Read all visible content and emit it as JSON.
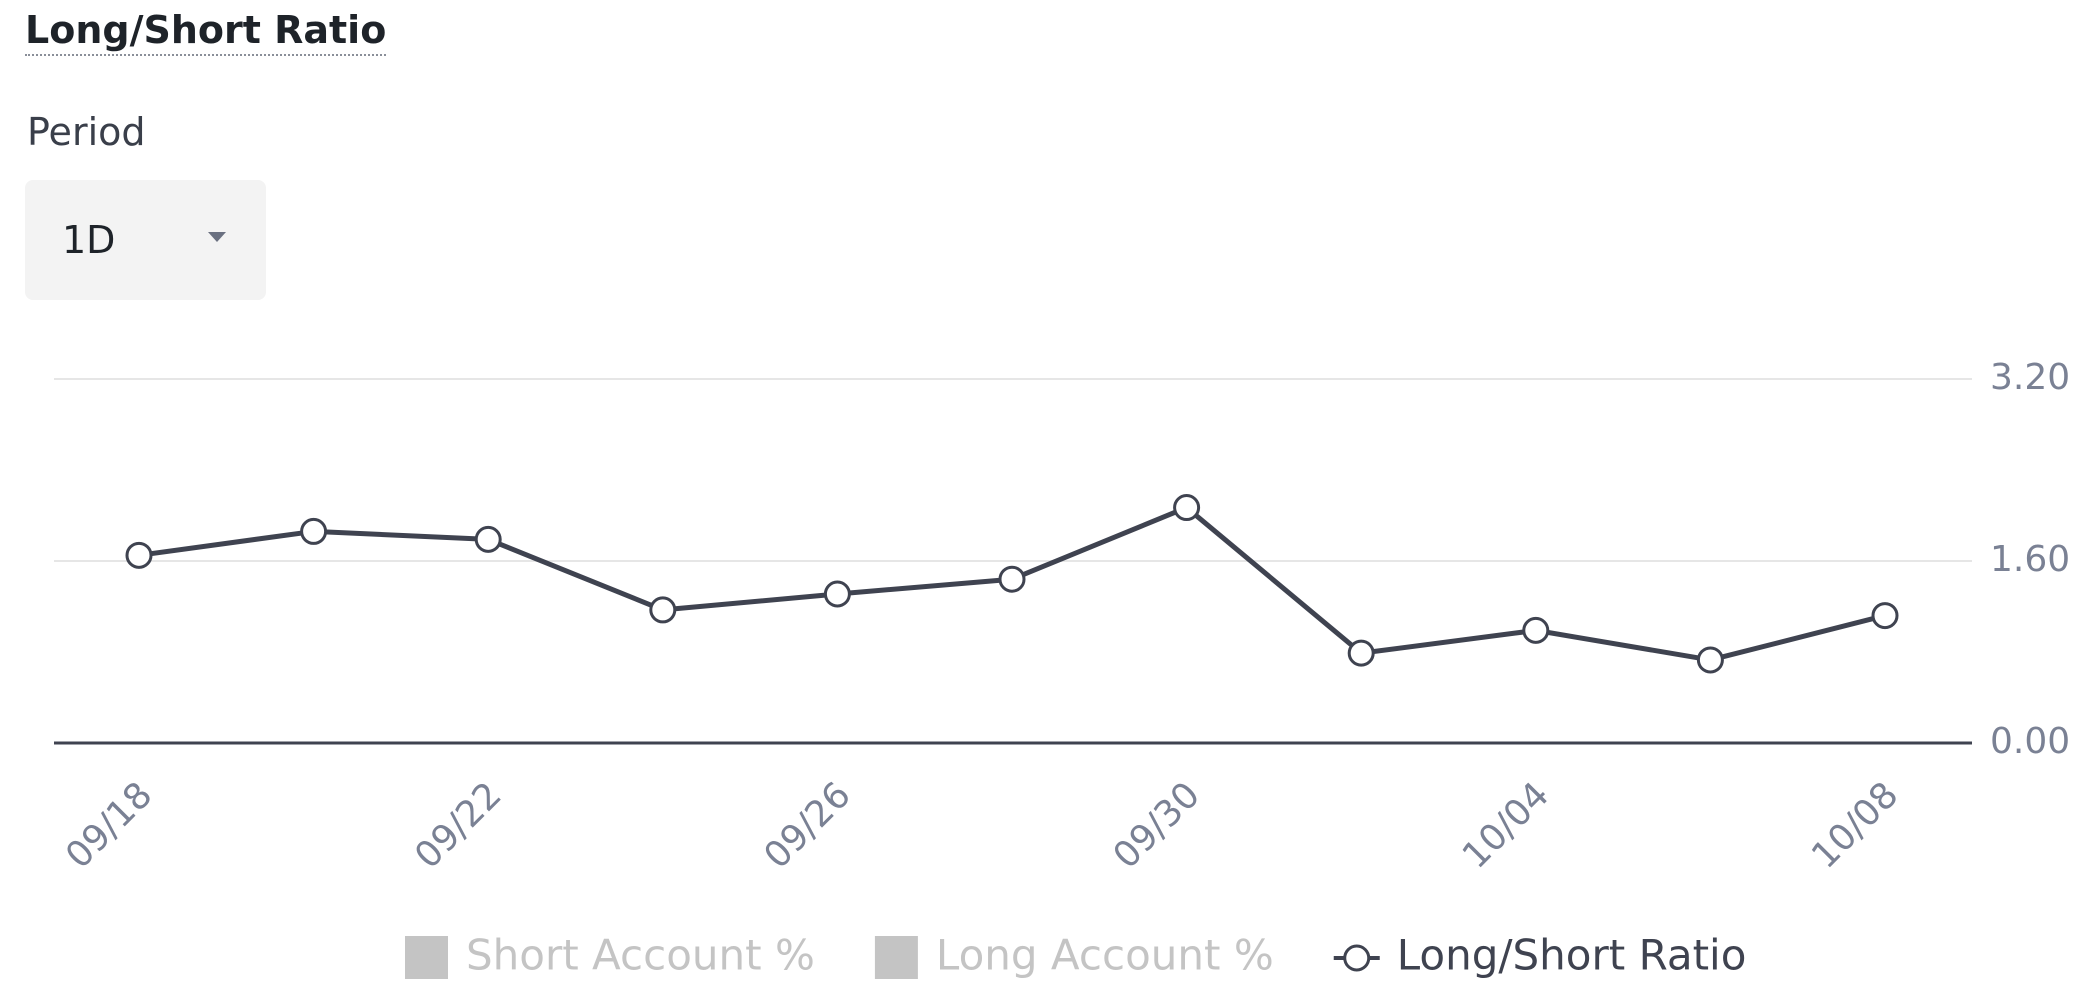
{
  "header": {
    "title": "Long/Short Ratio"
  },
  "controls": {
    "period_label": "Period",
    "period_value": "1D"
  },
  "chart_data": {
    "type": "line",
    "categories": [
      "09/18",
      null,
      "09/22",
      null,
      "09/26",
      null,
      "09/30",
      null,
      "10/04",
      null,
      "10/08"
    ],
    "series": [
      {
        "name": "Long/Short Ratio",
        "color": "#3f4350",
        "values": [
          1.65,
          1.86,
          1.79,
          1.17,
          1.31,
          1.44,
          2.07,
          0.79,
          0.99,
          0.73,
          1.12
        ]
      }
    ],
    "inactive_series": [
      {
        "name": "Short Account %",
        "color": "#c4c4c4"
      },
      {
        "name": "Long Account %",
        "color": "#c4c4c4"
      }
    ],
    "ylim": [
      0,
      3.2
    ],
    "yticks": [
      {
        "value": 0,
        "label": "0.00"
      },
      {
        "value": 1.6,
        "label": "1.60"
      },
      {
        "value": 3.2,
        "label": "3.20"
      }
    ],
    "grid": true
  }
}
